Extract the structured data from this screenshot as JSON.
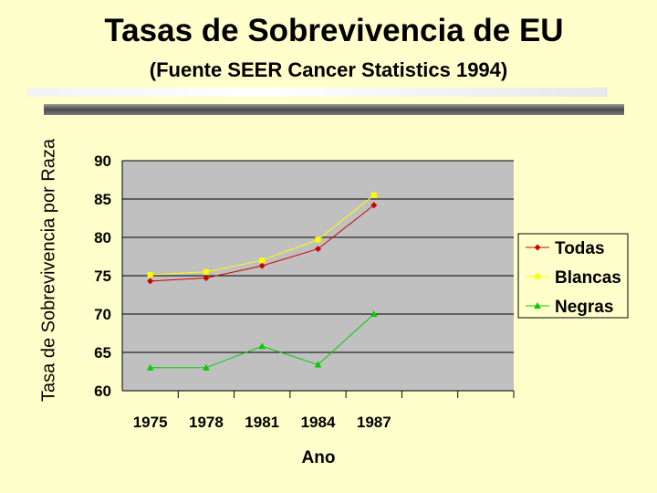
{
  "chart_data": {
    "type": "line",
    "title": "Tasas de Sobrevivencia de EU",
    "subtitle": "(Fuente SEER Cancer Statistics 1994)",
    "xlabel": "Ano",
    "ylabel": "Tasa de Sobrevivencia por Raza",
    "categories": [
      "1975",
      "1978",
      "1981",
      "1984",
      "1987"
    ],
    "x_slots": 7,
    "ylim": [
      60,
      90
    ],
    "yticks": [
      90,
      85,
      80,
      75,
      70,
      65,
      60
    ],
    "grid": true,
    "legend_position": "right",
    "series": [
      {
        "name": "Todas",
        "color": "#cc0000",
        "marker": "diamond",
        "values": [
          74.3,
          74.7,
          76.3,
          78.5,
          84.2
        ]
      },
      {
        "name": "Blancas",
        "color": "#ffff00",
        "marker": "square",
        "values": [
          75.1,
          75.5,
          77.0,
          79.7,
          85.5
        ]
      },
      {
        "name": "Negras",
        "color": "#00cc00",
        "marker": "triangle",
        "values": [
          63.0,
          63.0,
          65.8,
          63.4,
          70.0
        ]
      }
    ]
  }
}
